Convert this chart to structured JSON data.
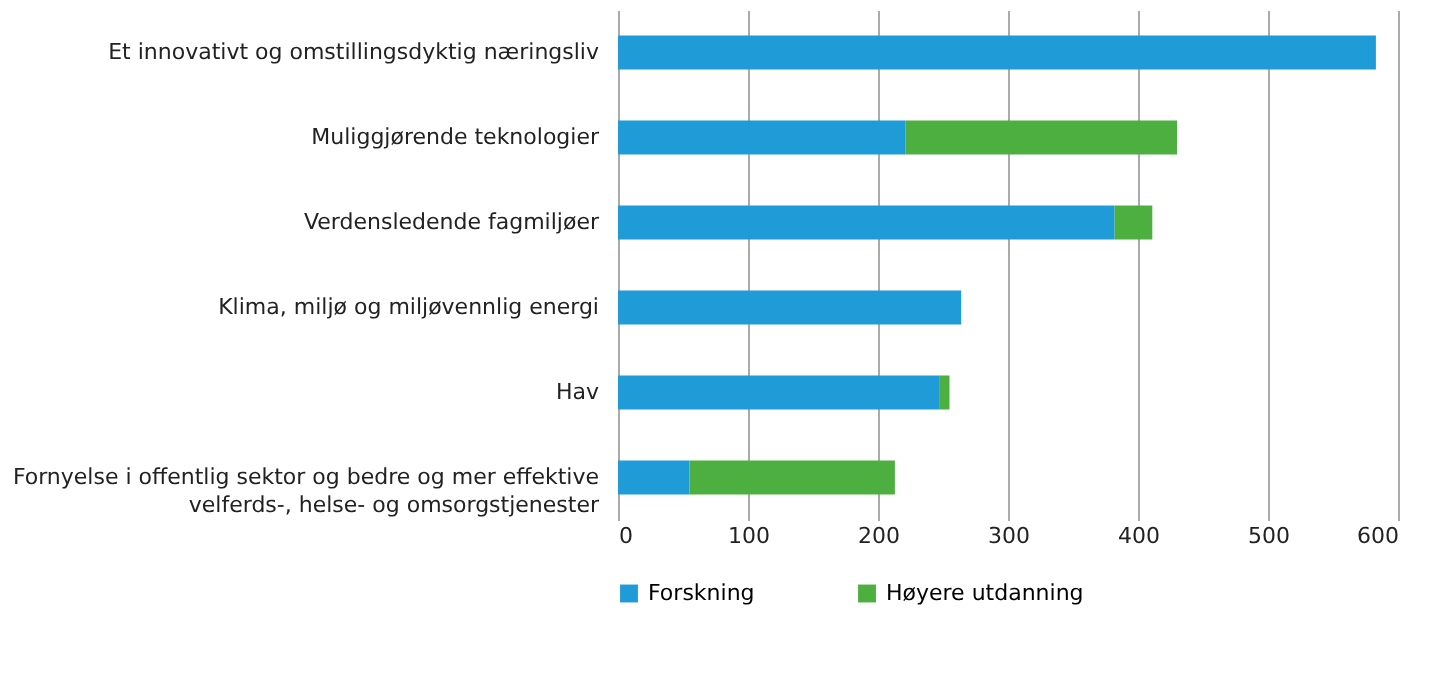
{
  "chart_data": {
    "type": "bar",
    "orientation": "horizontal",
    "stacked": true,
    "categories": [
      "Et innovativt og omstillingsdyktig næringsliv",
      "Muliggjørende teknologier",
      "Verdensledende fagmiljøer",
      "Klima, miljø og miljøvennlig energi",
      "Hav",
      "Fornyelse i offentlig sektor og bedre og mer effektive velferds-, helse- og omsorgstjenester"
    ],
    "series": [
      {
        "name": "Forskning",
        "color": "#1f9bd7",
        "values": [
          583,
          221,
          382,
          264,
          247,
          55
        ]
      },
      {
        "name": "Høyere utdanning",
        "color": "#4caf3f",
        "values": [
          0,
          209,
          29,
          0,
          8,
          158
        ]
      }
    ],
    "xlim": [
      0,
      600
    ],
    "xticks": [
      0,
      100,
      200,
      300,
      400,
      500,
      600
    ],
    "grid": "x",
    "legend": "bottom"
  }
}
